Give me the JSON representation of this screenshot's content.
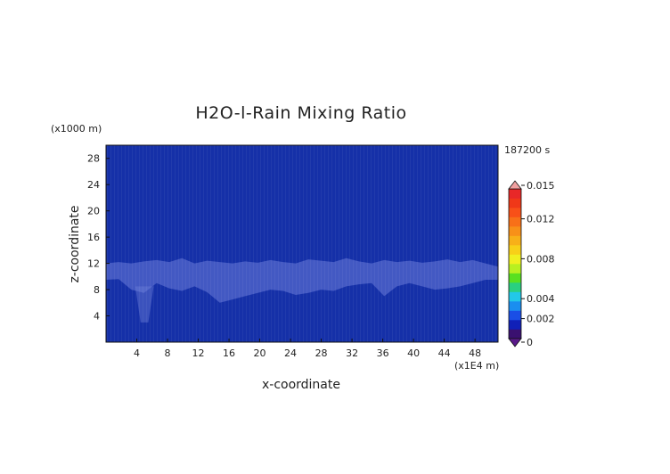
{
  "chart_data": {
    "type": "heatmap",
    "title": "H2O-l-Rain Mixing Ratio",
    "time_label": "187200 s",
    "xlabel": "x-coordinate",
    "ylabel": "z-coordinate",
    "x_unit": "(x1E4 m)",
    "y_unit": "(x1000 m)",
    "xlim": [
      0,
      51
    ],
    "ylim": [
      0,
      30
    ],
    "x_ticks": [
      4,
      8,
      12,
      16,
      20,
      24,
      28,
      32,
      36,
      40,
      44,
      48
    ],
    "y_ticks": [
      4,
      8,
      12,
      16,
      20,
      24,
      28
    ],
    "colorbar": {
      "ticks": [
        "0",
        "0.002",
        "0.004",
        "0.008",
        "0.012",
        "0.015"
      ],
      "tick_values": [
        0,
        0.002,
        0.004,
        0.008,
        0.012,
        0.015
      ],
      "vmin": 0,
      "vmax": 0.015
    },
    "field_description_values": {
      "background_value": 0.0,
      "layer_value": 0.0002,
      "layer_base_km": [
        9.5,
        9.6,
        8.0,
        7.5,
        9.0,
        8.2,
        7.8,
        8.5,
        7.6,
        6.0,
        6.5,
        7.0,
        7.5,
        8.0,
        7.8,
        7.2,
        7.5,
        8.0,
        7.8,
        8.5,
        8.8,
        9.0,
        7.0,
        8.5,
        9.0,
        8.5,
        8.0,
        8.2,
        8.5,
        9.0,
        9.5,
        9.5
      ],
      "layer_top_km": [
        12.0,
        12.2,
        12.0,
        12.3,
        12.5,
        12.2,
        12.8,
        12.0,
        12.4,
        12.2,
        12.0,
        12.3,
        12.1,
        12.5,
        12.2,
        12.0,
        12.6,
        12.4,
        12.2,
        12.8,
        12.3,
        12.0,
        12.5,
        12.2,
        12.4,
        12.1,
        12.3,
        12.6,
        12.2,
        12.5,
        12.0,
        11.5
      ],
      "plume_x": 5.0,
      "plume_bottom_km": 3.0
    }
  },
  "colors": {
    "background_blue": "#1530a8",
    "colorbar": [
      "#3a1070",
      "#1020b8",
      "#1a4ee6",
      "#1a8ef0",
      "#22c8e8",
      "#2ad080",
      "#58e020",
      "#b8f020",
      "#f0f020",
      "#f8d018",
      "#f8b018",
      "#f89018",
      "#f87018",
      "#f85018",
      "#f03818",
      "#e82828"
    ],
    "colorbar_top": "#f0a0a0",
    "colorbar_bottom": "#5a1a8a"
  }
}
